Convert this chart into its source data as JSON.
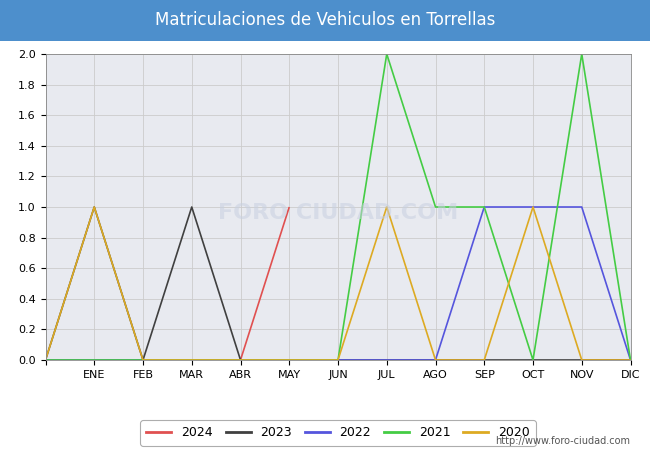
{
  "title": "Matriculaciones de Vehiculos en Torrellas",
  "title_bg_color": "#4d8fcc",
  "title_text_color": "#ffffff",
  "months": [
    "",
    "ENE",
    "FEB",
    "MAR",
    "ABR",
    "MAY",
    "JUN",
    "JUL",
    "AGO",
    "SEP",
    "OCT",
    "NOV",
    "DIC"
  ],
  "series": {
    "2024": {
      "color": "#e05050",
      "data": [
        0,
        0,
        0,
        0,
        0,
        1,
        null,
        null,
        null,
        null,
        null,
        null,
        null
      ]
    },
    "2023": {
      "color": "#404040",
      "data": [
        0,
        1,
        0,
        1,
        0,
        0,
        0,
        0,
        0,
        0,
        0,
        0,
        0
      ]
    },
    "2022": {
      "color": "#5555dd",
      "data": [
        0,
        0,
        0,
        0,
        0,
        0,
        0,
        0,
        0,
        1,
        1,
        1,
        0
      ]
    },
    "2021": {
      "color": "#44cc44",
      "data": [
        0,
        0,
        0,
        0,
        0,
        0,
        0,
        2,
        1,
        1,
        0,
        2,
        0
      ]
    },
    "2020": {
      "color": "#ddaa22",
      "data": [
        0,
        1,
        0,
        0,
        0,
        0,
        0,
        1,
        0,
        0,
        1,
        0,
        0
      ]
    }
  },
  "ylim": [
    0,
    2.0
  ],
  "yticks": [
    0.0,
    0.2,
    0.4,
    0.6,
    0.8,
    1.0,
    1.2,
    1.4,
    1.6,
    1.8,
    2.0
  ],
  "grid_color": "#cccccc",
  "plot_bg_color": "#e8eaf0",
  "fig_bg_color": "#ffffff",
  "watermark_plot": "FORO CIUDAD.COM",
  "watermark_url": "http://www.foro-ciudad.com",
  "legend_years": [
    "2024",
    "2023",
    "2022",
    "2021",
    "2020"
  ],
  "legend_colors": [
    "#e05050",
    "#404040",
    "#5555dd",
    "#44cc44",
    "#ddaa22"
  ]
}
